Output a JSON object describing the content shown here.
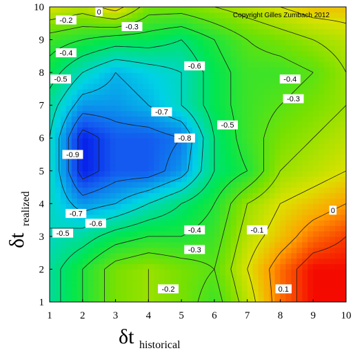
{
  "chart_data": {
    "type": "heatmap",
    "title": "",
    "copyright": "Copyright Gilles Zumbach 2012",
    "xlabel": {
      "main": "δt",
      "sub": "historical"
    },
    "ylabel": {
      "main": "δt",
      "sub": "realized"
    },
    "xlim": [
      1,
      10
    ],
    "ylim": [
      1,
      10
    ],
    "x_ticks": [
      "1",
      "2",
      "3",
      "4",
      "5",
      "6",
      "7",
      "8",
      "9",
      "10"
    ],
    "y_ticks": [
      "1",
      "2",
      "3",
      "4",
      "5",
      "6",
      "7",
      "8",
      "9",
      "10"
    ],
    "grid": false,
    "legend": "none",
    "colormap": "blue-cyan-green-yellow-red (low to high)",
    "x": [
      1,
      2,
      3,
      4,
      5,
      6,
      7,
      8,
      9,
      10
    ],
    "y": [
      1,
      2,
      3,
      4,
      5,
      6,
      7,
      8,
      9,
      10
    ],
    "z": [
      [
        -0.55,
        -0.4,
        -0.25,
        -0.2,
        -0.25,
        -0.35,
        -0.15,
        0.05,
        0.15,
        0.15
      ],
      [
        -0.55,
        -0.4,
        -0.25,
        -0.2,
        -0.25,
        -0.3,
        -0.1,
        0.05,
        0.15,
        0.15
      ],
      [
        -0.6,
        -0.55,
        -0.45,
        -0.4,
        -0.4,
        -0.35,
        -0.15,
        -0.05,
        0.05,
        0.1
      ],
      [
        -0.6,
        -0.75,
        -0.7,
        -0.6,
        -0.5,
        -0.4,
        -0.2,
        -0.1,
        -0.05,
        0.0
      ],
      [
        -0.6,
        -0.95,
        -0.85,
        -0.85,
        -0.75,
        -0.5,
        -0.4,
        -0.2,
        -0.15,
        -0.1
      ],
      [
        -0.6,
        -0.95,
        -0.85,
        -0.85,
        -0.8,
        -0.5,
        -0.35,
        -0.25,
        -0.2,
        -0.15
      ],
      [
        -0.55,
        -0.75,
        -0.75,
        -0.7,
        -0.6,
        -0.45,
        -0.35,
        -0.3,
        -0.25,
        -0.2
      ],
      [
        -0.45,
        -0.6,
        -0.7,
        -0.65,
        -0.6,
        -0.45,
        -0.35,
        -0.35,
        -0.3,
        -0.2
      ],
      [
        -0.35,
        -0.4,
        -0.45,
        -0.45,
        -0.5,
        -0.4,
        -0.3,
        -0.25,
        -0.2,
        -0.15
      ],
      [
        -0.1,
        -0.15,
        -0.05,
        -0.25,
        -0.25,
        -0.2,
        -0.15,
        -0.1,
        -0.05,
        -0.05
      ]
    ],
    "contour_levels": [
      -0.9,
      -0.8,
      -0.7,
      -0.6,
      -0.5,
      -0.4,
      -0.3,
      -0.2,
      -0.1,
      0,
      0.1
    ],
    "contour_labels": [
      {
        "text": "-0.2",
        "x": 1.5,
        "y": 9.6
      },
      {
        "text": "0",
        "x": 2.5,
        "y": 9.93
      },
      {
        "text": "-0.3",
        "x": 3.5,
        "y": 9.4
      },
      {
        "text": "-0.4",
        "x": 1.5,
        "y": 8.6
      },
      {
        "text": "-0.5",
        "x": 1.2,
        "y": 7.8
      },
      {
        "text": "-0.6",
        "x": 5.4,
        "y": 8.2
      },
      {
        "text": "-0.7",
        "x": 4.4,
        "y": 6.8
      },
      {
        "text": "-0.8",
        "x": 5.1,
        "y": 6.0
      },
      {
        "text": "-0.9",
        "x": 1.7,
        "y": 5.5
      },
      {
        "text": "-0.5",
        "x": 6.4,
        "y": 6.4
      },
      {
        "text": "-0.4",
        "x": 8.3,
        "y": 7.8
      },
      {
        "text": "-0.3",
        "x": 8.4,
        "y": 7.2
      },
      {
        "text": "-0.7",
        "x": 1.8,
        "y": 3.7
      },
      {
        "text": "-0.6",
        "x": 2.4,
        "y": 3.4
      },
      {
        "text": "-0.5",
        "x": 1.4,
        "y": 3.1
      },
      {
        "text": "-0.4",
        "x": 5.4,
        "y": 3.2
      },
      {
        "text": "-0.3",
        "x": 5.4,
        "y": 2.6
      },
      {
        "text": "-0.2",
        "x": 4.6,
        "y": 1.4
      },
      {
        "text": "-0.1",
        "x": 7.3,
        "y": 3.2
      },
      {
        "text": "0",
        "x": 9.6,
        "y": 3.8
      },
      {
        "text": "0.1",
        "x": 8.1,
        "y": 1.4
      }
    ]
  }
}
